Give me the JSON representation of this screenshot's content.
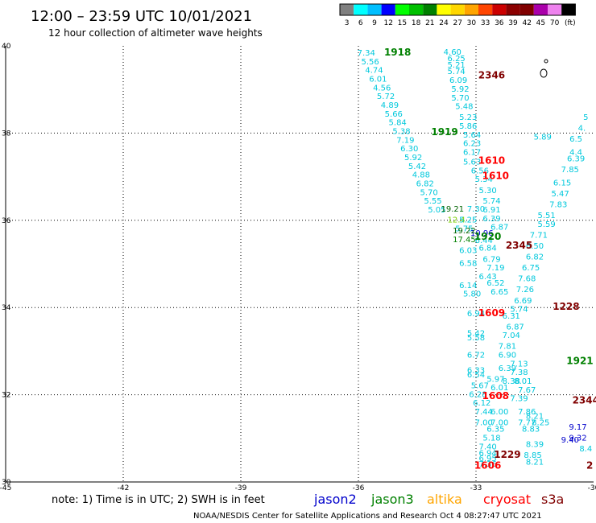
{
  "title": "12:00 – 23:59 UTC 10/01/2021",
  "subtitle": "12 hour collection of altimeter wave heights",
  "legend": {
    "colors": [
      "#808080",
      "#00ffff",
      "#00bfff",
      "#0000ff",
      "#00ff00",
      "#00c000",
      "#008000",
      "#ffff00",
      "#ffd700",
      "#ffa500",
      "#ff4500",
      "#cc0000",
      "#8b0000",
      "#800000",
      "#aa00aa",
      "#ee82ee",
      "#000000"
    ],
    "labels": [
      "3",
      "6",
      "9",
      "12",
      "15",
      "18",
      "21",
      "24",
      "27",
      "30",
      "33",
      "36",
      "39",
      "42",
      "45",
      "70",
      "(ft)"
    ]
  },
  "chart_data": {
    "type": "scatter",
    "xlim": [
      -45,
      -30
    ],
    "ylim": [
      30,
      40
    ],
    "x_ticks": [
      "-45",
      "-42",
      "-39",
      "-36",
      "-33",
      "-30"
    ],
    "y_ticks": [
      "40",
      "38",
      "36",
      "34",
      "32",
      "30"
    ],
    "grid": true,
    "swh_points": [
      {
        "lon": -35.8,
        "lat": 39.78,
        "v": "7.34",
        "c": "#00c8dc"
      },
      {
        "lon": -35.7,
        "lat": 39.58,
        "v": "5.56",
        "c": "#00c8dc"
      },
      {
        "lon": -35.6,
        "lat": 39.38,
        "v": "4.74",
        "c": "#00c8dc"
      },
      {
        "lon": -35.5,
        "lat": 39.18,
        "v": "6.01",
        "c": "#00c8dc"
      },
      {
        "lon": -35.4,
        "lat": 38.98,
        "v": "4.56",
        "c": "#00c8dc"
      },
      {
        "lon": -35.3,
        "lat": 38.78,
        "v": "5.72",
        "c": "#00c8dc"
      },
      {
        "lon": -35.2,
        "lat": 38.58,
        "v": "4.89",
        "c": "#00c8dc"
      },
      {
        "lon": -35.1,
        "lat": 38.38,
        "v": "5.66",
        "c": "#00c8dc"
      },
      {
        "lon": -35.0,
        "lat": 38.18,
        "v": "5.84",
        "c": "#00c8dc"
      },
      {
        "lon": -34.9,
        "lat": 37.98,
        "v": "5.38",
        "c": "#00c8dc"
      },
      {
        "lon": -34.8,
        "lat": 37.78,
        "v": "7.19",
        "c": "#00c8dc"
      },
      {
        "lon": -34.7,
        "lat": 37.58,
        "v": "6.30",
        "c": "#00c8dc"
      },
      {
        "lon": -34.6,
        "lat": 37.38,
        "v": "5.92",
        "c": "#00c8dc"
      },
      {
        "lon": -34.5,
        "lat": 37.18,
        "v": "5.42",
        "c": "#00c8dc"
      },
      {
        "lon": -34.4,
        "lat": 36.98,
        "v": "4.88",
        "c": "#00c8dc"
      },
      {
        "lon": -34.3,
        "lat": 36.78,
        "v": "6.82",
        "c": "#00c8dc"
      },
      {
        "lon": -34.2,
        "lat": 36.58,
        "v": "5.70",
        "c": "#00c8dc"
      },
      {
        "lon": -34.1,
        "lat": 36.38,
        "v": "5.55",
        "c": "#00c8dc"
      },
      {
        "lon": -34.0,
        "lat": 36.18,
        "v": "5.05",
        "c": "#00c8dc"
      },
      {
        "lon": -33.6,
        "lat": 39.8,
        "v": "4.60",
        "c": "#00c8dc"
      },
      {
        "lon": -33.5,
        "lat": 39.65,
        "v": "6.25",
        "c": "#00c8dc"
      },
      {
        "lon": -33.5,
        "lat": 39.5,
        "v": "5.21",
        "c": "#00c8dc"
      },
      {
        "lon": -33.5,
        "lat": 39.35,
        "v": "5.74",
        "c": "#00c8dc"
      },
      {
        "lon": -33.45,
        "lat": 39.15,
        "v": "6.09",
        "c": "#00c8dc"
      },
      {
        "lon": -33.4,
        "lat": 38.95,
        "v": "5.92",
        "c": "#00c8dc"
      },
      {
        "lon": -33.4,
        "lat": 38.75,
        "v": "5.70",
        "c": "#00c8dc"
      },
      {
        "lon": -33.3,
        "lat": 38.55,
        "v": "5.48",
        "c": "#00c8dc"
      },
      {
        "lon": -33.2,
        "lat": 38.3,
        "v": "5.23",
        "c": "#00c8dc"
      },
      {
        "lon": -33.2,
        "lat": 38.1,
        "v": "5.86",
        "c": "#00c8dc"
      },
      {
        "lon": -33.1,
        "lat": 37.9,
        "v": "5.64",
        "c": "#00c8dc"
      },
      {
        "lon": -33.1,
        "lat": 37.7,
        "v": "6.23",
        "c": "#00c8dc"
      },
      {
        "lon": -33.1,
        "lat": 37.5,
        "v": "6.17",
        "c": "#00c8dc"
      },
      {
        "lon": -33.1,
        "lat": 37.28,
        "v": "5.63",
        "c": "#00c8dc"
      },
      {
        "lon": -32.9,
        "lat": 37.08,
        "v": "6.56",
        "c": "#00c8dc"
      },
      {
        "lon": -32.8,
        "lat": 36.88,
        "v": "5.34",
        "c": "#00c8dc"
      },
      {
        "lon": -32.7,
        "lat": 36.62,
        "v": "5.30",
        "c": "#00c8dc"
      },
      {
        "lon": -32.6,
        "lat": 36.38,
        "v": "5.74",
        "c": "#00c8dc"
      },
      {
        "lon": -32.6,
        "lat": 36.18,
        "v": "6.91",
        "c": "#00c8dc"
      },
      {
        "lon": -32.6,
        "lat": 35.98,
        "v": "6.39",
        "c": "#00c8dc"
      },
      {
        "lon": -32.4,
        "lat": 35.78,
        "v": "6.87",
        "c": "#00c8dc"
      },
      {
        "lon": -32.8,
        "lat": 35.48,
        "v": "6.44",
        "c": "#00c8dc"
      },
      {
        "lon": -32.7,
        "lat": 35.3,
        "v": "6.84",
        "c": "#00c8dc"
      },
      {
        "lon": -32.6,
        "lat": 35.05,
        "v": "6.79",
        "c": "#00c8dc"
      },
      {
        "lon": -32.5,
        "lat": 34.85,
        "v": "7.19",
        "c": "#00c8dc"
      },
      {
        "lon": -32.7,
        "lat": 34.65,
        "v": "6.43",
        "c": "#00c8dc"
      },
      {
        "lon": -32.5,
        "lat": 34.5,
        "v": "6.52",
        "c": "#00c8dc"
      },
      {
        "lon": -32.4,
        "lat": 34.3,
        "v": "6.65",
        "c": "#00c8dc"
      },
      {
        "lon": -33.2,
        "lat": 34.95,
        "v": "6.58",
        "c": "#00c8dc"
      },
      {
        "lon": -33.2,
        "lat": 34.45,
        "v": "6.14",
        "c": "#00c8dc"
      },
      {
        "lon": -33.1,
        "lat": 34.25,
        "v": "5.80",
        "c": "#00c8dc"
      },
      {
        "lon": -33.3,
        "lat": 35.75,
        "v": "5.75",
        "c": "#00c8dc"
      },
      {
        "lon": -33.2,
        "lat": 35.25,
        "v": "6.03",
        "c": "#00c8dc"
      },
      {
        "lon": -33.0,
        "lat": 33.8,
        "v": "6.94",
        "c": "#00c8dc"
      },
      {
        "lon": -32.1,
        "lat": 33.75,
        "v": "6.31",
        "c": "#00c8dc"
      },
      {
        "lon": -32.0,
        "lat": 33.5,
        "v": "6.87",
        "c": "#00c8dc"
      },
      {
        "lon": -32.1,
        "lat": 33.3,
        "v": "7.04",
        "c": "#00c8dc"
      },
      {
        "lon": -32.2,
        "lat": 33.05,
        "v": "7.81",
        "c": "#00c8dc"
      },
      {
        "lon": -32.2,
        "lat": 32.85,
        "v": "6.90",
        "c": "#00c8dc"
      },
      {
        "lon": -31.9,
        "lat": 32.65,
        "v": "7.13",
        "c": "#00c8dc"
      },
      {
        "lon": -32.2,
        "lat": 32.55,
        "v": "6.39",
        "c": "#00c8dc"
      },
      {
        "lon": -31.9,
        "lat": 32.45,
        "v": "7.38",
        "c": "#00c8dc"
      },
      {
        "lon": -32.1,
        "lat": 32.25,
        "v": "8.38",
        "c": "#00c8dc"
      },
      {
        "lon": -31.8,
        "lat": 32.25,
        "v": "8.01",
        "c": "#00c8dc"
      },
      {
        "lon": -32.5,
        "lat": 32.3,
        "v": "5.97",
        "c": "#00c8dc"
      },
      {
        "lon": -32.4,
        "lat": 32.1,
        "v": "6.01",
        "c": "#00c8dc"
      },
      {
        "lon": -31.7,
        "lat": 32.05,
        "v": "7.67",
        "c": "#00c8dc"
      },
      {
        "lon": -31.9,
        "lat": 31.85,
        "v": "7.39",
        "c": "#00c8dc"
      },
      {
        "lon": -33.0,
        "lat": 33.35,
        "v": "5.42",
        "c": "#00c8dc"
      },
      {
        "lon": -33.0,
        "lat": 33.25,
        "v": "5.58",
        "c": "#00c8dc"
      },
      {
        "lon": -33.0,
        "lat": 32.85,
        "v": "6.72",
        "c": "#00c8dc"
      },
      {
        "lon": -33.0,
        "lat": 32.5,
        "v": "6.33",
        "c": "#00c8dc"
      },
      {
        "lon": -33.0,
        "lat": 32.4,
        "v": "6.54",
        "c": "#00c8dc"
      },
      {
        "lon": -32.9,
        "lat": 32.15,
        "v": "5.67",
        "c": "#00c8dc"
      },
      {
        "lon": -32.95,
        "lat": 31.95,
        "v": "6.28",
        "c": "#00c8dc"
      },
      {
        "lon": -32.85,
        "lat": 31.75,
        "v": "6.12",
        "c": "#00c8dc"
      },
      {
        "lon": -32.8,
        "lat": 31.55,
        "v": "7.44",
        "c": "#00c8dc"
      },
      {
        "lon": -32.4,
        "lat": 31.55,
        "v": "6.00",
        "c": "#00c8dc"
      },
      {
        "lon": -32.8,
        "lat": 31.3,
        "v": "7.00",
        "c": "#00c8dc"
      },
      {
        "lon": -32.4,
        "lat": 31.3,
        "v": "7.00",
        "c": "#00c8dc"
      },
      {
        "lon": -32.5,
        "lat": 31.15,
        "v": "6.35",
        "c": "#00c8dc"
      },
      {
        "lon": -31.7,
        "lat": 31.55,
        "v": "7.86",
        "c": "#00c8dc"
      },
      {
        "lon": -31.5,
        "lat": 31.45,
        "v": "8.21",
        "c": "#00c8dc"
      },
      {
        "lon": -31.7,
        "lat": 31.3,
        "v": "7.77",
        "c": "#00c8dc"
      },
      {
        "lon": -31.35,
        "lat": 31.3,
        "v": "8.25",
        "c": "#00c8dc"
      },
      {
        "lon": -31.6,
        "lat": 31.15,
        "v": "8.83",
        "c": "#00c8dc"
      },
      {
        "lon": -31.5,
        "lat": 30.8,
        "v": "8.39",
        "c": "#00c8dc"
      },
      {
        "lon": -31.55,
        "lat": 30.55,
        "v": "8.85",
        "c": "#00c8dc"
      },
      {
        "lon": -31.5,
        "lat": 30.4,
        "v": "8.21",
        "c": "#00c8dc"
      },
      {
        "lon": -32.6,
        "lat": 30.95,
        "v": "5.18",
        "c": "#00c8dc"
      },
      {
        "lon": -32.7,
        "lat": 30.75,
        "v": "7.40",
        "c": "#00c8dc"
      },
      {
        "lon": -32.7,
        "lat": 30.6,
        "v": "6.94",
        "c": "#00c8dc"
      },
      {
        "lon": -32.7,
        "lat": 30.48,
        "v": "6.95",
        "c": "#00c8dc"
      },
      {
        "lon": -32.7,
        "lat": 30.35,
        "v": "7.36",
        "c": "#00c8dc"
      },
      {
        "lon": -31.3,
        "lat": 37.85,
        "v": "5.89",
        "c": "#00c8dc"
      },
      {
        "lon": -31.4,
        "lat": 35.6,
        "v": "7.71",
        "c": "#00c8dc"
      },
      {
        "lon": -31.5,
        "lat": 35.35,
        "v": "6.50",
        "c": "#00c8dc"
      },
      {
        "lon": -31.5,
        "lat": 35.1,
        "v": "6.82",
        "c": "#00c8dc"
      },
      {
        "lon": -31.6,
        "lat": 34.85,
        "v": "6.75",
        "c": "#00c8dc"
      },
      {
        "lon": -31.7,
        "lat": 34.6,
        "v": "7.68",
        "c": "#00c8dc"
      },
      {
        "lon": -31.75,
        "lat": 34.35,
        "v": "7.26",
        "c": "#00c8dc"
      },
      {
        "lon": -31.8,
        "lat": 34.1,
        "v": "6.69",
        "c": "#00c8dc"
      },
      {
        "lon": -31.9,
        "lat": 33.9,
        "v": "5.74",
        "c": "#00c8dc"
      },
      {
        "lon": -31.2,
        "lat": 35.85,
        "v": "5.59",
        "c": "#00c8dc"
      },
      {
        "lon": -31.2,
        "lat": 36.05,
        "v": "5.51",
        "c": "#00c8dc"
      },
      {
        "lon": -30.9,
        "lat": 36.3,
        "v": "7.83",
        "c": "#00c8dc"
      },
      {
        "lon": -30.85,
        "lat": 36.55,
        "v": "5.47",
        "c": "#00c8dc"
      },
      {
        "lon": -30.8,
        "lat": 36.8,
        "v": "6.15",
        "c": "#00c8dc"
      },
      {
        "lon": -30.6,
        "lat": 37.1,
        "v": "7.85",
        "c": "#00c8dc"
      },
      {
        "lon": -30.45,
        "lat": 37.35,
        "v": "6.39",
        "c": "#00c8dc"
      },
      {
        "lon": -30.45,
        "lat": 37.5,
        "v": "4.4",
        "c": "#00c8dc"
      },
      {
        "lon": -30.45,
        "lat": 37.8,
        "v": "6.5",
        "c": "#00c8dc"
      },
      {
        "lon": -30.3,
        "lat": 38.05,
        "v": "4.",
        "c": "#00c8dc"
      },
      {
        "lon": -30.2,
        "lat": 38.3,
        "v": "5",
        "c": "#00c8dc"
      },
      {
        "lon": -30.4,
        "lat": 31.2,
        "v": "9.17",
        "c": "#0000cc"
      },
      {
        "lon": -30.6,
        "lat": 30.9,
        "v": "9.40",
        "c": "#0000cc"
      },
      {
        "lon": -30.4,
        "lat": 30.95,
        "v": "9.32",
        "c": "#0000cc"
      },
      {
        "lon": -32.85,
        "lat": 35.65,
        "v": "10.96",
        "c": "#0000cc"
      },
      {
        "lon": -30.2,
        "lat": 30.7,
        "v": "8.4",
        "c": "#00c8dc"
      },
      {
        "lon": -33.6,
        "lat": 36.2,
        "v": "19.21",
        "c": "#006400"
      },
      {
        "lon": -33.0,
        "lat": 36.2,
        "v": "7.30",
        "c": "#00c8dc"
      },
      {
        "lon": -33.5,
        "lat": 35.95,
        "v": "12.4",
        "c": "#7cd000"
      },
      {
        "lon": -33.2,
        "lat": 35.95,
        "v": "5.25",
        "c": "#00c8dc"
      },
      {
        "lon": -33.3,
        "lat": 35.7,
        "v": "19.22",
        "c": "#006400"
      },
      {
        "lon": -33.3,
        "lat": 35.5,
        "v": "17.45",
        "c": "#008000"
      }
    ],
    "time_labels": [
      {
        "lon": -35.0,
        "lat": 39.78,
        "v": "1918",
        "c": "#008000"
      },
      {
        "lon": -33.8,
        "lat": 37.95,
        "v": "1919",
        "c": "#008000"
      },
      {
        "lon": -32.7,
        "lat": 35.55,
        "v": "1920",
        "c": "#008000"
      },
      {
        "lon": -30.35,
        "lat": 32.7,
        "v": "1921",
        "c": "#008000"
      },
      {
        "lon": -32.6,
        "lat": 39.25,
        "v": "2346",
        "c": "#800000"
      },
      {
        "lon": -31.9,
        "lat": 35.35,
        "v": "2345",
        "c": "#800000"
      },
      {
        "lon": -30.2,
        "lat": 31.8,
        "v": "2344",
        "c": "#800000"
      },
      {
        "lon": -30.7,
        "lat": 33.95,
        "v": "1228",
        "c": "#800000"
      },
      {
        "lon": -32.2,
        "lat": 30.55,
        "v": "1229",
        "c": "#800000"
      },
      {
        "lon": -32.6,
        "lat": 37.3,
        "v": "1610",
        "c": "#ff0000"
      },
      {
        "lon": -32.5,
        "lat": 36.95,
        "v": "1610",
        "c": "#ff0000"
      },
      {
        "lon": -32.6,
        "lat": 33.8,
        "v": "1609",
        "c": "#ff0000"
      },
      {
        "lon": -32.5,
        "lat": 31.9,
        "v": "1608",
        "c": "#ff0000"
      },
      {
        "lon": -32.7,
        "lat": 30.3,
        "v": "1606",
        "c": "#ff0000"
      },
      {
        "lon": -30.1,
        "lat": 30.3,
        "v": "2",
        "c": "#800000"
      }
    ]
  },
  "satellites": [
    {
      "name": "jason2",
      "color": "#0000cc"
    },
    {
      "name": "jason3",
      "color": "#008000"
    },
    {
      "name": "altika",
      "color": "#ffa500"
    },
    {
      "name": "cryosat",
      "color": "#ff0000"
    },
    {
      "name": "s3a",
      "color": "#800000"
    }
  ],
  "note": "note: 1) Time is in UTC; 2) SWH is in feet",
  "footer": "NOAA/NESDIS Center for Satellite Applications and Research   Oct  4 08:27:47 UTC 2021"
}
